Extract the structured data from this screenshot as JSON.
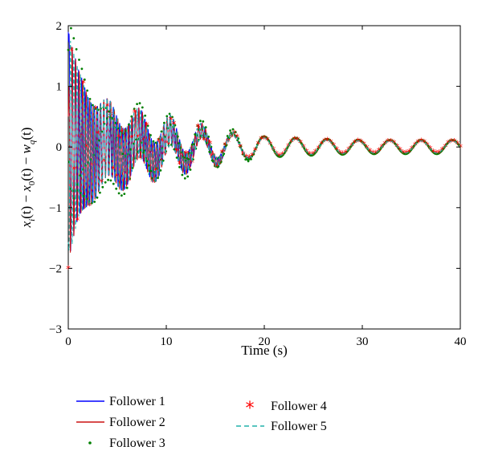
{
  "chart_data": {
    "type": "line",
    "title": "",
    "xlabel": "Time (s)",
    "ylabel": "x_i(t) − x_0(t) − w_q(t)",
    "ylabel_parts": {
      "x": "x",
      "i": "i",
      "t1": "(t) − ",
      "x0": "x",
      "zero": "0",
      "t2": "(t) − ",
      "w": "w",
      "q": "q",
      "t3": "(t)"
    },
    "xlim": [
      0,
      40
    ],
    "ylim": [
      -3,
      2
    ],
    "xticks": [
      0,
      10,
      20,
      30,
      40
    ],
    "yticks": [
      -3,
      -2,
      -1,
      0,
      1,
      2
    ],
    "grid": false,
    "legend_position": "bottom",
    "envelope_model": {
      "t": [
        0,
        1,
        2,
        3,
        5,
        7,
        10,
        12,
        14,
        17,
        20,
        25,
        30,
        35,
        40
      ],
      "amplitude": [
        1.9,
        1.3,
        1.0,
        0.85,
        0.75,
        0.65,
        0.55,
        0.45,
        0.38,
        0.25,
        0.15,
        0.12,
        0.1,
        0.1,
        0.1
      ]
    },
    "oscillation_period_s": 3.2,
    "series": [
      {
        "name": "Follower 1",
        "color": "#0000ff",
        "style": "solid",
        "start_value": 1.9
      },
      {
        "name": "Follower 2",
        "color": "#cc1111",
        "style": "solid",
        "start_value": 0.5
      },
      {
        "name": "Follower 3",
        "color": "#008000",
        "style": "dots",
        "start_value": 1.6
      },
      {
        "name": "Follower 4",
        "color": "#ff0000",
        "style": "asterisk",
        "start_value": -2.0
      },
      {
        "name": "Follower 5",
        "color": "#20b2aa",
        "style": "dashed",
        "start_value": -1.6
      }
    ]
  }
}
